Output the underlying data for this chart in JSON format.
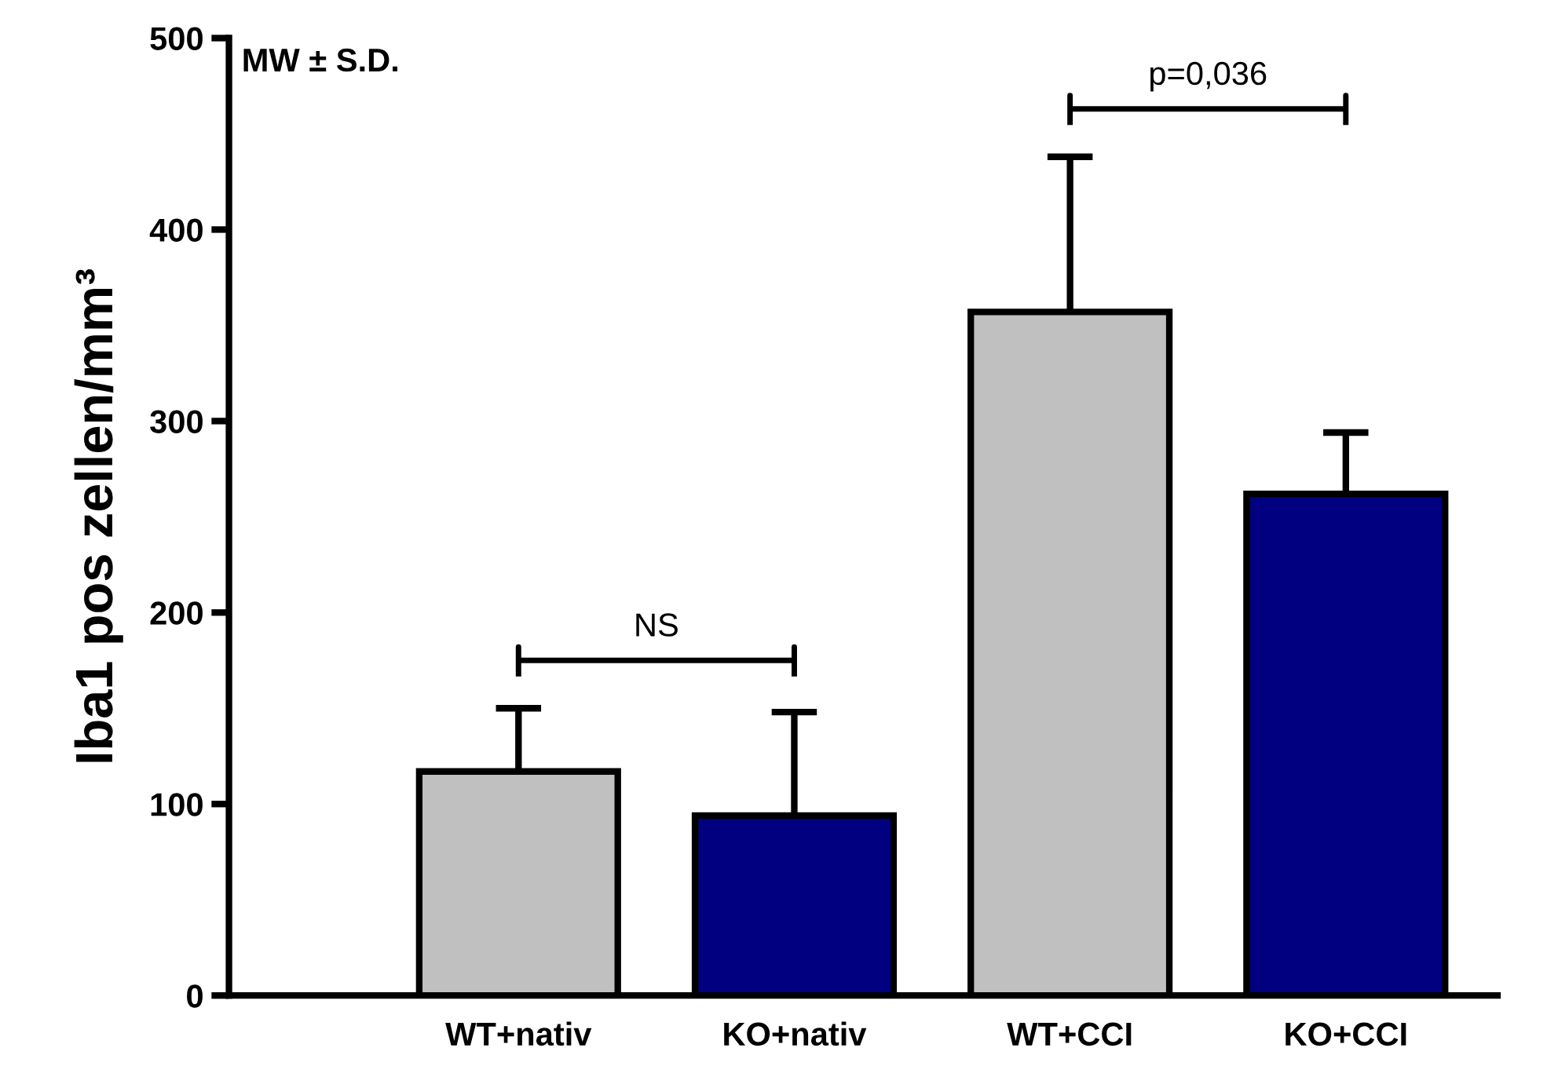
{
  "chart_data": {
    "type": "bar",
    "ylabel": "Iba1 pos zellen/mm³",
    "categories": [
      "WT+nativ",
      "KO+nativ",
      "WT+CCI",
      "KO+CCI"
    ],
    "values": [
      117,
      94,
      357,
      262
    ],
    "colors": [
      "#c0c0c0",
      "#000080",
      "#c0c0c0",
      "#000080"
    ],
    "errors": [
      [
        117,
        150
      ],
      [
        94,
        148
      ],
      [
        357,
        438
      ],
      [
        262,
        294
      ]
    ],
    "ylim": [
      0,
      500
    ],
    "yticks": [
      0,
      100,
      200,
      300,
      400,
      500
    ],
    "grid": false,
    "legend": false,
    "annotations": [
      "MW ± S.D.",
      "NS",
      "p=0,036"
    ]
  }
}
